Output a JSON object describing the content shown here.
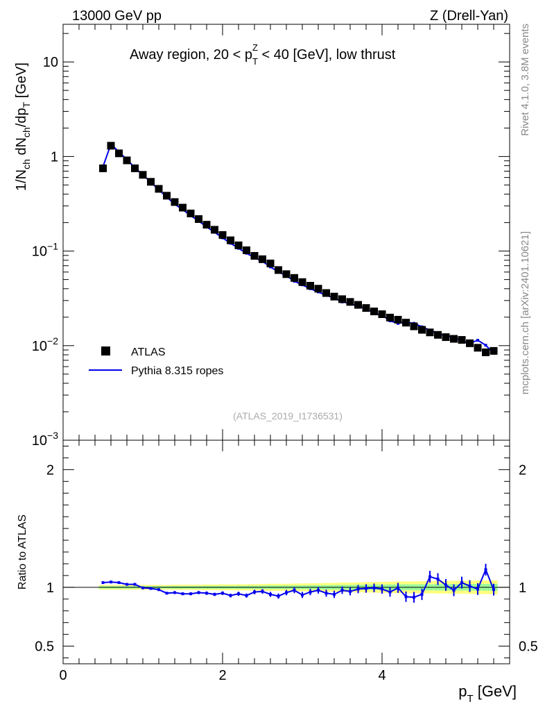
{
  "header": {
    "left": "13000 GeV pp",
    "right": "Z (Drell-Yan)"
  },
  "side": {
    "rivet": "Rivet 4.1.0,  3.8M events",
    "mcplots": "mcplots.cern.ch [arXiv:2401.10621]"
  },
  "chart_data": [
    {
      "type": "scatter",
      "title": "Away region, 20 < p_T^Z < 40 [GeV], low thrust",
      "title_parts": {
        "a": "Away region, 20 < p",
        "sub": "T",
        "sup": "Z",
        "b": " < 40 [GeV], low thrust"
      },
      "ylabel": "1/N_ch dN_ch/dp_T [GeV]",
      "ylabel_parts": {
        "p1": "1/N",
        "s1": "ch",
        "p2": " dN",
        "s2": "ch",
        "p3": "/dp",
        "s3": "T",
        "p4": " [GeV]"
      },
      "yscale": "log",
      "ylim": [
        0.001,
        25
      ],
      "xlim": [
        0,
        5.6
      ],
      "yticks": [
        {
          "v": 10,
          "base": "10",
          "exp": ""
        },
        {
          "v": 1,
          "base": "1",
          "exp": ""
        },
        {
          "v": 0.1,
          "base": "10",
          "exp": "−1"
        },
        {
          "v": 0.01,
          "base": "10",
          "exp": "−2"
        },
        {
          "v": 0.001,
          "base": "10",
          "exp": "−3"
        }
      ],
      "watermark": "(ATLAS_2019_I1736531)",
      "legend": [
        {
          "label": "ATLAS",
          "marker": "square",
          "color": "#000000"
        },
        {
          "label": "Pythia 8.315 ropes",
          "marker": "line",
          "color": "#0000ee"
        }
      ],
      "x": [
        0.5,
        0.6,
        0.7,
        0.8,
        0.9,
        1.0,
        1.1,
        1.2,
        1.3,
        1.4,
        1.5,
        1.6,
        1.7,
        1.8,
        1.9,
        2.0,
        2.1,
        2.2,
        2.3,
        2.4,
        2.5,
        2.6,
        2.7,
        2.8,
        2.9,
        3.0,
        3.1,
        3.2,
        3.3,
        3.4,
        3.5,
        3.6,
        3.7,
        3.8,
        3.9,
        4.0,
        4.1,
        4.2,
        4.3,
        4.4,
        4.5,
        4.6,
        4.7,
        4.8,
        4.9,
        5.0,
        5.1,
        5.2,
        5.3,
        5.4
      ],
      "series": [
        {
          "name": "ATLAS",
          "values": [
            0.75,
            1.3,
            1.08,
            0.91,
            0.75,
            0.64,
            0.54,
            0.455,
            0.385,
            0.33,
            0.288,
            0.25,
            0.218,
            0.19,
            0.168,
            0.148,
            0.13,
            0.115,
            0.102,
            0.089,
            0.082,
            0.074,
            0.063,
            0.057,
            0.052,
            0.047,
            0.043,
            0.04,
            0.036,
            0.033,
            0.031,
            0.029,
            0.027,
            0.025,
            0.023,
            0.0215,
            0.0198,
            0.0188,
            0.0175,
            0.016,
            0.0147,
            0.0138,
            0.013,
            0.0123,
            0.0118,
            0.0115,
            0.0106,
            0.0095,
            0.0085,
            0.0088
          ]
        },
        {
          "name": "Pythia 8.315 ropes",
          "values": [
            0.78,
            1.35,
            1.12,
            0.93,
            0.76,
            0.64,
            0.535,
            0.445,
            0.372,
            0.313,
            0.274,
            0.237,
            0.208,
            0.18,
            0.158,
            0.138,
            0.121,
            0.107,
            0.095,
            0.085,
            0.078,
            0.068,
            0.06,
            0.055,
            0.048,
            0.044,
            0.04,
            0.037,
            0.034,
            0.032,
            0.029,
            0.028,
            0.026,
            0.025,
            0.022,
            0.021,
            0.0183,
            0.0172,
            0.0177,
            0.0172,
            0.0158,
            0.0146,
            0.0133,
            0.0128,
            0.0123,
            0.0112,
            0.0106,
            0.0114,
            0.0101,
            0.0083
          ]
        }
      ]
    },
    {
      "type": "line",
      "ylabel": "Ratio to ATLAS",
      "xlabel": "p_T [GeV]",
      "xlabel_parts": {
        "p": "p",
        "sub": "T",
        "rest": " [GeV]"
      },
      "ylim": [
        0.35,
        2.25
      ],
      "xlim": [
        0,
        5.6
      ],
      "xticks": [
        "0",
        "2",
        "4"
      ],
      "yticks": [
        {
          "v": 2,
          "label": "2"
        },
        {
          "v": 1,
          "label": "1"
        },
        {
          "v": 0.5,
          "label": "0.5"
        }
      ],
      "band_color": "#ffff7f",
      "band_inner_color": "#9afc9a",
      "x": [
        0.5,
        0.6,
        0.7,
        0.8,
        0.9,
        1.0,
        1.1,
        1.2,
        1.3,
        1.4,
        1.5,
        1.6,
        1.7,
        1.8,
        1.9,
        2.0,
        2.1,
        2.2,
        2.3,
        2.4,
        2.5,
        2.6,
        2.7,
        2.8,
        2.9,
        3.0,
        3.1,
        3.2,
        3.3,
        3.4,
        3.5,
        3.6,
        3.7,
        3.8,
        3.9,
        4.0,
        4.1,
        4.2,
        4.3,
        4.4,
        4.5,
        4.6,
        4.7,
        4.8,
        4.9,
        5.0,
        5.1,
        5.2,
        5.3,
        5.4
      ],
      "values": [
        1.04,
        1.045,
        1.04,
        1.025,
        1.025,
        0.995,
        0.99,
        0.98,
        0.95,
        0.955,
        0.945,
        0.945,
        0.955,
        0.95,
        0.94,
        0.95,
        0.93,
        0.945,
        0.93,
        0.96,
        0.965,
        0.94,
        0.925,
        0.955,
        0.975,
        0.935,
        0.96,
        0.975,
        0.95,
        0.94,
        0.975,
        0.965,
        0.985,
        0.99,
        0.995,
        0.985,
        0.96,
        0.995,
        0.92,
        0.915,
        0.94,
        1.09,
        1.07,
        1.02,
        0.975,
        1.04,
        1.01,
        0.985,
        1.15,
        0.98
      ],
      "errors": [
        0.008,
        0.008,
        0.008,
        0.008,
        0.008,
        0.01,
        0.01,
        0.01,
        0.01,
        0.012,
        0.012,
        0.012,
        0.013,
        0.014,
        0.014,
        0.015,
        0.016,
        0.017,
        0.018,
        0.019,
        0.02,
        0.021,
        0.022,
        0.023,
        0.025,
        0.026,
        0.027,
        0.028,
        0.03,
        0.031,
        0.032,
        0.033,
        0.035,
        0.036,
        0.037,
        0.04,
        0.04,
        0.042,
        0.044,
        0.046,
        0.048,
        0.05,
        0.05,
        0.05,
        0.05,
        0.05,
        0.05,
        0.05,
        0.05,
        0.05
      ],
      "band_half_width": [
        0.02,
        0.02,
        0.02,
        0.02,
        0.02,
        0.02,
        0.02,
        0.02,
        0.02,
        0.022,
        0.022,
        0.022,
        0.022,
        0.024,
        0.024,
        0.025,
        0.025,
        0.026,
        0.026,
        0.027,
        0.028,
        0.03,
        0.03,
        0.03,
        0.032,
        0.033,
        0.034,
        0.035,
        0.037,
        0.038,
        0.04,
        0.04,
        0.042,
        0.044,
        0.045,
        0.046,
        0.048,
        0.05,
        0.05,
        0.05,
        0.052,
        0.052,
        0.054,
        0.054,
        0.055,
        0.055,
        0.056,
        0.057,
        0.058,
        0.058
      ]
    }
  ]
}
